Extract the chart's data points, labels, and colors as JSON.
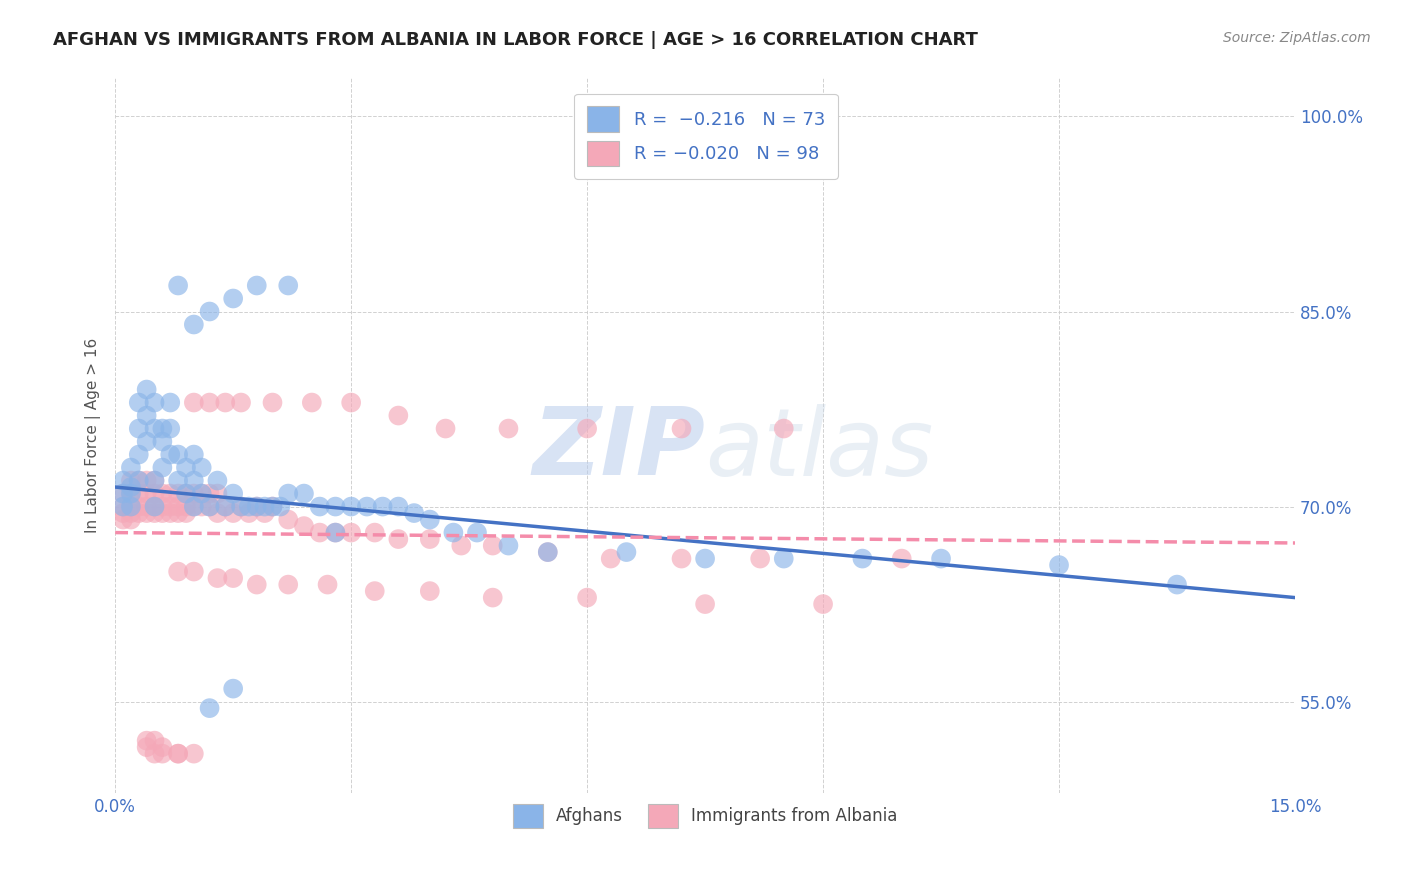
{
  "title": "AFGHAN VS IMMIGRANTS FROM ALBANIA IN LABOR FORCE | AGE > 16 CORRELATION CHART",
  "source": "Source: ZipAtlas.com",
  "ylabel": "In Labor Force | Age > 16",
  "x_min": 0.0,
  "x_max": 0.15,
  "y_min": 0.48,
  "y_max": 1.03,
  "y_ticks": [
    0.55,
    0.7,
    0.85,
    1.0
  ],
  "y_tick_labels": [
    "55.0%",
    "70.0%",
    "85.0%",
    "100.0%"
  ],
  "x_ticks": [
    0.0,
    0.03,
    0.06,
    0.09,
    0.12,
    0.15
  ],
  "x_tick_labels": [
    "0.0%",
    "",
    "",
    "",
    "",
    "15.0%"
  ],
  "afghan_color": "#8ab4e8",
  "albanian_color": "#f4a8b8",
  "afghan_line_color": "#4472c4",
  "albanian_line_color": "#f48caa",
  "watermark": "ZIPatlas",
  "background_color": "#ffffff",
  "title_color": "#222222",
  "axis_color": "#4472c4",
  "title_fontsize": 13,
  "source_fontsize": 10,
  "af_line_x0": 0.0,
  "af_line_y0": 0.715,
  "af_line_x1": 0.15,
  "af_line_y1": 0.63,
  "al_line_x0": 0.0,
  "al_line_y0": 0.68,
  "al_line_x1": 0.15,
  "al_line_y1": 0.672,
  "afghans_x": [
    0.001,
    0.001,
    0.001,
    0.002,
    0.002,
    0.002,
    0.002,
    0.003,
    0.003,
    0.003,
    0.003,
    0.004,
    0.004,
    0.004,
    0.005,
    0.005,
    0.005,
    0.005,
    0.006,
    0.006,
    0.006,
    0.007,
    0.007,
    0.007,
    0.008,
    0.008,
    0.009,
    0.009,
    0.01,
    0.01,
    0.01,
    0.011,
    0.011,
    0.012,
    0.013,
    0.014,
    0.015,
    0.016,
    0.017,
    0.018,
    0.019,
    0.02,
    0.021,
    0.022,
    0.024,
    0.026,
    0.028,
    0.03,
    0.032,
    0.034,
    0.036,
    0.038,
    0.04,
    0.043,
    0.046,
    0.05,
    0.055,
    0.065,
    0.075,
    0.085,
    0.095,
    0.105,
    0.12,
    0.135,
    0.008,
    0.01,
    0.012,
    0.015,
    0.018,
    0.022,
    0.028,
    0.012,
    0.015
  ],
  "afghans_y": [
    0.7,
    0.72,
    0.71,
    0.715,
    0.7,
    0.71,
    0.73,
    0.74,
    0.72,
    0.76,
    0.78,
    0.75,
    0.77,
    0.79,
    0.76,
    0.78,
    0.72,
    0.7,
    0.73,
    0.75,
    0.76,
    0.74,
    0.76,
    0.78,
    0.72,
    0.74,
    0.71,
    0.73,
    0.7,
    0.72,
    0.74,
    0.71,
    0.73,
    0.7,
    0.72,
    0.7,
    0.71,
    0.7,
    0.7,
    0.7,
    0.7,
    0.7,
    0.7,
    0.71,
    0.71,
    0.7,
    0.7,
    0.7,
    0.7,
    0.7,
    0.7,
    0.695,
    0.69,
    0.68,
    0.68,
    0.67,
    0.665,
    0.665,
    0.66,
    0.66,
    0.66,
    0.66,
    0.655,
    0.64,
    0.87,
    0.84,
    0.85,
    0.86,
    0.87,
    0.87,
    0.68,
    0.545,
    0.56
  ],
  "albanians_x": [
    0.001,
    0.001,
    0.001,
    0.001,
    0.002,
    0.002,
    0.002,
    0.002,
    0.002,
    0.003,
    0.003,
    0.003,
    0.003,
    0.004,
    0.004,
    0.004,
    0.004,
    0.005,
    0.005,
    0.005,
    0.005,
    0.006,
    0.006,
    0.006,
    0.007,
    0.007,
    0.007,
    0.008,
    0.008,
    0.008,
    0.009,
    0.009,
    0.009,
    0.01,
    0.01,
    0.011,
    0.011,
    0.012,
    0.012,
    0.013,
    0.013,
    0.014,
    0.015,
    0.016,
    0.017,
    0.018,
    0.019,
    0.02,
    0.022,
    0.024,
    0.026,
    0.028,
    0.03,
    0.033,
    0.036,
    0.04,
    0.044,
    0.048,
    0.055,
    0.063,
    0.072,
    0.082,
    0.01,
    0.012,
    0.014,
    0.016,
    0.02,
    0.025,
    0.03,
    0.036,
    0.042,
    0.05,
    0.06,
    0.072,
    0.085,
    0.1,
    0.008,
    0.01,
    0.013,
    0.015,
    0.018,
    0.022,
    0.027,
    0.033,
    0.04,
    0.048,
    0.06,
    0.075,
    0.09,
    0.004,
    0.005,
    0.006,
    0.008,
    0.004,
    0.005,
    0.006,
    0.008,
    0.01
  ],
  "albanians_y": [
    0.7,
    0.69,
    0.695,
    0.71,
    0.7,
    0.695,
    0.71,
    0.69,
    0.72,
    0.695,
    0.7,
    0.71,
    0.72,
    0.695,
    0.71,
    0.72,
    0.7,
    0.7,
    0.71,
    0.695,
    0.72,
    0.7,
    0.71,
    0.695,
    0.7,
    0.71,
    0.695,
    0.7,
    0.71,
    0.695,
    0.7,
    0.71,
    0.695,
    0.7,
    0.71,
    0.7,
    0.71,
    0.7,
    0.71,
    0.695,
    0.71,
    0.7,
    0.695,
    0.7,
    0.695,
    0.7,
    0.695,
    0.7,
    0.69,
    0.685,
    0.68,
    0.68,
    0.68,
    0.68,
    0.675,
    0.675,
    0.67,
    0.67,
    0.665,
    0.66,
    0.66,
    0.66,
    0.78,
    0.78,
    0.78,
    0.78,
    0.78,
    0.78,
    0.78,
    0.77,
    0.76,
    0.76,
    0.76,
    0.76,
    0.76,
    0.66,
    0.65,
    0.65,
    0.645,
    0.645,
    0.64,
    0.64,
    0.64,
    0.635,
    0.635,
    0.63,
    0.63,
    0.625,
    0.625,
    0.52,
    0.52,
    0.515,
    0.51,
    0.515,
    0.51,
    0.51,
    0.51,
    0.51
  ]
}
